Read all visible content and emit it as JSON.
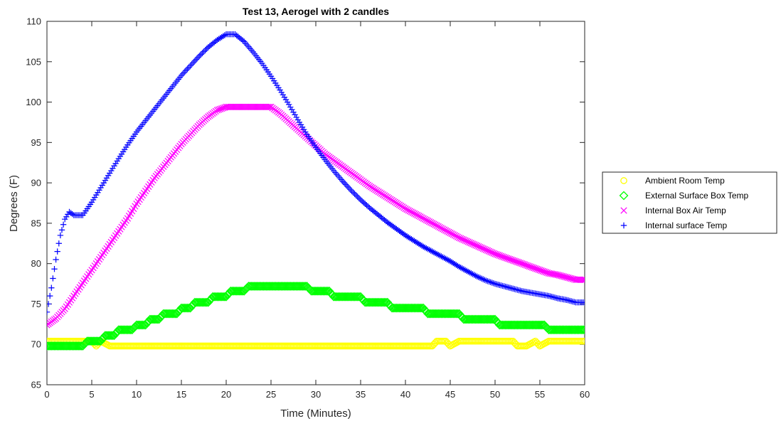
{
  "chart_data": {
    "type": "scatter",
    "title": "Test 13, Aerogel with 2 candles",
    "xlabel": "Time (Minutes)",
    "ylabel": "Degrees (F)",
    "xlim": [
      0,
      60
    ],
    "ylim": [
      65,
      110
    ],
    "xticks": [
      0,
      5,
      10,
      15,
      20,
      25,
      30,
      35,
      40,
      45,
      50,
      55,
      60
    ],
    "yticks": [
      65,
      70,
      75,
      80,
      85,
      90,
      95,
      100,
      105,
      110
    ],
    "grid": false,
    "legend_position": "right",
    "series": [
      {
        "name": "Ambient Room Temp",
        "marker": "circle",
        "color": "#ffff00",
        "points": [
          [
            0,
            70.4
          ],
          [
            1,
            70.4
          ],
          [
            2,
            70.4
          ],
          [
            3,
            70.4
          ],
          [
            4,
            70.4
          ],
          [
            5,
            70.4
          ],
          [
            5.5,
            69.8
          ],
          [
            6,
            70.4
          ],
          [
            7,
            69.8
          ],
          [
            10,
            69.8
          ],
          [
            15,
            69.8
          ],
          [
            20,
            69.8
          ],
          [
            25,
            69.8
          ],
          [
            30,
            69.8
          ],
          [
            35,
            69.8
          ],
          [
            40,
            69.8
          ],
          [
            43,
            69.8
          ],
          [
            43.5,
            70.4
          ],
          [
            44.5,
            70.4
          ],
          [
            45,
            69.8
          ],
          [
            46,
            70.4
          ],
          [
            50,
            70.4
          ],
          [
            52,
            70.4
          ],
          [
            52.5,
            69.8
          ],
          [
            53.5,
            69.8
          ],
          [
            54.5,
            70.4
          ],
          [
            55,
            69.8
          ],
          [
            56,
            70.4
          ],
          [
            60,
            70.4
          ]
        ]
      },
      {
        "name": "External Surface Box Temp",
        "marker": "diamond",
        "color": "#00ff00",
        "points": [
          [
            0,
            69.8
          ],
          [
            4,
            69.8
          ],
          [
            4.5,
            70.4
          ],
          [
            6,
            70.4
          ],
          [
            6.5,
            71.1
          ],
          [
            7.5,
            71.1
          ],
          [
            8,
            71.8
          ],
          [
            9.5,
            71.8
          ],
          [
            10,
            72.4
          ],
          [
            11,
            72.4
          ],
          [
            11.5,
            73.1
          ],
          [
            12.5,
            73.1
          ],
          [
            13,
            73.8
          ],
          [
            14.5,
            73.8
          ],
          [
            15,
            74.5
          ],
          [
            16,
            74.5
          ],
          [
            16.5,
            75.2
          ],
          [
            18,
            75.2
          ],
          [
            18.5,
            75.9
          ],
          [
            20,
            75.9
          ],
          [
            20.5,
            76.6
          ],
          [
            22,
            76.6
          ],
          [
            22.5,
            77.2
          ],
          [
            29,
            77.2
          ],
          [
            29.5,
            76.6
          ],
          [
            31.5,
            76.6
          ],
          [
            32,
            75.9
          ],
          [
            35,
            75.9
          ],
          [
            35.5,
            75.2
          ],
          [
            38,
            75.2
          ],
          [
            38.5,
            74.5
          ],
          [
            42,
            74.5
          ],
          [
            42.5,
            73.8
          ],
          [
            46,
            73.8
          ],
          [
            46.5,
            73.1
          ],
          [
            50,
            73.1
          ],
          [
            50.5,
            72.4
          ],
          [
            55.5,
            72.4
          ],
          [
            56,
            71.8
          ],
          [
            60,
            71.8
          ]
        ]
      },
      {
        "name": "Internal Box Air Temp",
        "marker": "x",
        "color": "#ff00ff",
        "points": [
          [
            0,
            72.4
          ],
          [
            1,
            73.2
          ],
          [
            2,
            74.4
          ],
          [
            3,
            76
          ],
          [
            4,
            77.6
          ],
          [
            5,
            79.2
          ],
          [
            6,
            80.8
          ],
          [
            7,
            82.4
          ],
          [
            8,
            84
          ],
          [
            9,
            85.6
          ],
          [
            10,
            87.4
          ],
          [
            11,
            89
          ],
          [
            12,
            90.6
          ],
          [
            13,
            92
          ],
          [
            14,
            93.4
          ],
          [
            15,
            94.8
          ],
          [
            16,
            96
          ],
          [
            17,
            97.2
          ],
          [
            18,
            98.2
          ],
          [
            19,
            99
          ],
          [
            20,
            99.4
          ],
          [
            25,
            99.4
          ],
          [
            26,
            98.6
          ],
          [
            27,
            97.6
          ],
          [
            28,
            96.6
          ],
          [
            29,
            95.6
          ],
          [
            30,
            94.6
          ],
          [
            31,
            93.6
          ],
          [
            32,
            92.8
          ],
          [
            33,
            92
          ],
          [
            34,
            91.2
          ],
          [
            35,
            90.4
          ],
          [
            36,
            89.6
          ],
          [
            37,
            88.9
          ],
          [
            38,
            88.2
          ],
          [
            39,
            87.5
          ],
          [
            40,
            86.8
          ],
          [
            41,
            86.2
          ],
          [
            42,
            85.6
          ],
          [
            43,
            85
          ],
          [
            44,
            84.4
          ],
          [
            45,
            83.8
          ],
          [
            46,
            83.2
          ],
          [
            47,
            82.7
          ],
          [
            48,
            82.2
          ],
          [
            49,
            81.7
          ],
          [
            50,
            81.2
          ],
          [
            51,
            80.8
          ],
          [
            52,
            80.4
          ],
          [
            53,
            80
          ],
          [
            54,
            79.6
          ],
          [
            55,
            79.2
          ],
          [
            56,
            78.8
          ],
          [
            57,
            78.6
          ],
          [
            58,
            78.3
          ],
          [
            59,
            78
          ],
          [
            60,
            78
          ]
        ]
      },
      {
        "name": "Internal surface Temp",
        "marker": "plus",
        "color": "#0000ff",
        "points": [
          [
            0,
            74
          ],
          [
            0.5,
            77
          ],
          [
            1,
            80.5
          ],
          [
            1.5,
            83.5
          ],
          [
            2,
            85.5
          ],
          [
            2.5,
            86.4
          ],
          [
            3,
            86
          ],
          [
            4,
            86
          ],
          [
            5,
            87.6
          ],
          [
            6,
            89.4
          ],
          [
            7,
            91.2
          ],
          [
            8,
            93
          ],
          [
            9,
            94.7
          ],
          [
            10,
            96.3
          ],
          [
            11,
            97.7
          ],
          [
            12,
            99.1
          ],
          [
            13,
            100.5
          ],
          [
            14,
            101.9
          ],
          [
            15,
            103.3
          ],
          [
            16,
            104.5
          ],
          [
            17,
            105.7
          ],
          [
            18,
            106.8
          ],
          [
            19,
            107.7
          ],
          [
            20,
            108.4
          ],
          [
            21,
            108.4
          ],
          [
            22,
            107.5
          ],
          [
            23,
            106.2
          ],
          [
            24,
            104.8
          ],
          [
            25,
            103.2
          ],
          [
            26,
            101.5
          ],
          [
            27,
            99.7
          ],
          [
            28,
            97.8
          ],
          [
            29,
            96
          ],
          [
            30,
            94.4
          ],
          [
            31,
            92.9
          ],
          [
            32,
            91.5
          ],
          [
            33,
            90.2
          ],
          [
            34,
            89
          ],
          [
            35,
            87.9
          ],
          [
            36,
            86.9
          ],
          [
            37,
            86
          ],
          [
            38,
            85.1
          ],
          [
            39,
            84.3
          ],
          [
            40,
            83.5
          ],
          [
            41,
            82.8
          ],
          [
            42,
            82.1
          ],
          [
            43,
            81.5
          ],
          [
            44,
            80.9
          ],
          [
            45,
            80.3
          ],
          [
            46,
            79.6
          ],
          [
            47,
            79
          ],
          [
            48,
            78.4
          ],
          [
            49,
            77.9
          ],
          [
            50,
            77.5
          ],
          [
            51,
            77.2
          ],
          [
            52,
            76.9
          ],
          [
            53,
            76.6
          ],
          [
            54,
            76.4
          ],
          [
            55,
            76.2
          ],
          [
            56,
            76
          ],
          [
            57,
            75.7
          ],
          [
            58,
            75.5
          ],
          [
            59,
            75.2
          ],
          [
            60,
            75.2
          ]
        ]
      }
    ]
  }
}
